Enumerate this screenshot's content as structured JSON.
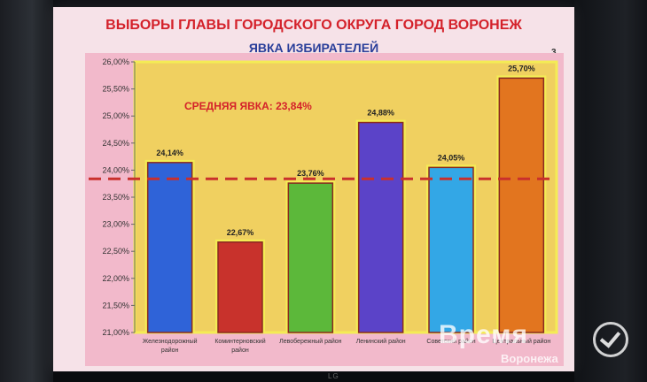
{
  "slide": {
    "title": "ВЫБОРЫ ГЛАВЫ ГОРОДСКОГО ОКРУГА ГОРОД ВОРОНЕЖ",
    "subtitle": "ЯВКА ИЗБИРАТЕЛЕЙ",
    "slide_number": "3"
  },
  "watermark": {
    "title": "Время",
    "subtitle": "Воронежа",
    "icon": "checkmark-circle-icon"
  },
  "tv_brand": "LG",
  "chart_data": {
    "type": "bar",
    "title": "ЯВКА ИЗБИРАТЕЛЕЙ",
    "xlabel": "",
    "ylabel": "",
    "ylim": [
      21.0,
      26.0
    ],
    "ytick_step": 0.5,
    "ytick_labels": [
      "21,00%",
      "21,50%",
      "22,00%",
      "22,50%",
      "23,00%",
      "23,50%",
      "24,00%",
      "24,50%",
      "25,00%",
      "25,50%",
      "26,00%"
    ],
    "categories": [
      [
        "Железнодорожный",
        "район"
      ],
      [
        "Коминтерновский",
        "район"
      ],
      [
        "Левобережный район"
      ],
      [
        "Ленинский район"
      ],
      [
        "Советский район"
      ],
      [
        "Центральный район"
      ]
    ],
    "values": [
      24.14,
      22.67,
      23.76,
      24.88,
      24.05,
      25.7
    ],
    "value_labels": [
      "24,14%",
      "22,67%",
      "23,76%",
      "24,88%",
      "24,05%",
      "25,70%"
    ],
    "bar_colors": [
      "#2f63d8",
      "#c8322c",
      "#5cb83a",
      "#5b43c8",
      "#33a7e6",
      "#e2751f"
    ],
    "reference_line": {
      "value": 23.84,
      "label": "СРЕДНЯЯ ЯВКА: 23,84%",
      "color": "#c9302c"
    },
    "grid": false,
    "legend": "none",
    "plot_bg": "#f0d060",
    "border_color": "#f4ec55"
  }
}
